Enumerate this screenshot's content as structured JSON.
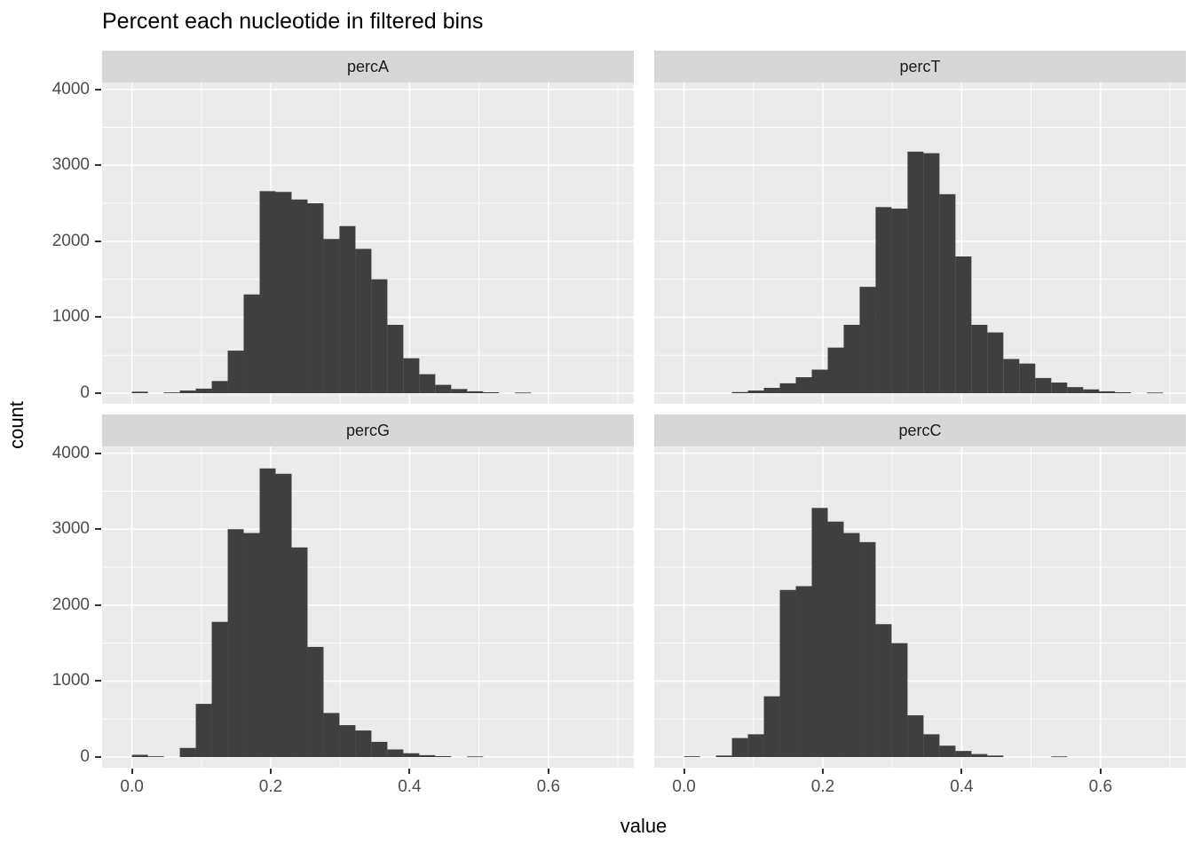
{
  "chart_data": {
    "type": "bar",
    "subtype": "faceted-histogram",
    "title": "Percent each nucleotide in filtered bins",
    "xlabel": "value",
    "ylabel": "count",
    "binwidth": 0.023,
    "x_range": [
      -0.043,
      0.723
    ],
    "y_range": [
      -140,
      4090
    ],
    "grid": "on",
    "legend": "none",
    "x_ticks": {
      "values": [
        0,
        0.2,
        0.4,
        0.6
      ],
      "labels": [
        "0.0",
        "0.2",
        "0.4",
        "0.6"
      ]
    },
    "y_ticks": {
      "values": [
        0,
        1000,
        2000,
        3000,
        4000
      ],
      "labels": [
        "0",
        "1000",
        "2000",
        "3000",
        "4000"
      ]
    },
    "x_minor": [
      0.1,
      0.3,
      0.5,
      0.7
    ],
    "y_minor": [
      500,
      1500,
      2500,
      3500
    ],
    "colors": {
      "panel_bg": "#ebebeb",
      "strip_bg": "#d7d7d7",
      "strip_text": "#1a1a1a",
      "grid": "#ffffff",
      "bar": "#3f3f3f",
      "axis_text": "#4d4d4d",
      "tick": "#333333"
    },
    "facets": [
      {
        "label": "percA",
        "bins": [
          [
            0.0,
            20
          ],
          [
            0.046,
            10
          ],
          [
            0.069,
            35
          ],
          [
            0.092,
            60
          ],
          [
            0.115,
            160
          ],
          [
            0.138,
            560
          ],
          [
            0.161,
            1300
          ],
          [
            0.184,
            2660
          ],
          [
            0.207,
            2650
          ],
          [
            0.23,
            2550
          ],
          [
            0.253,
            2500
          ],
          [
            0.276,
            2030
          ],
          [
            0.299,
            2200
          ],
          [
            0.322,
            1900
          ],
          [
            0.345,
            1500
          ],
          [
            0.368,
            900
          ],
          [
            0.391,
            460
          ],
          [
            0.414,
            250
          ],
          [
            0.437,
            110
          ],
          [
            0.46,
            55
          ],
          [
            0.483,
            25
          ],
          [
            0.506,
            12
          ],
          [
            0.552,
            8
          ]
        ]
      },
      {
        "label": "percT",
        "bins": [
          [
            0.069,
            15
          ],
          [
            0.092,
            35
          ],
          [
            0.115,
            70
          ],
          [
            0.138,
            130
          ],
          [
            0.161,
            210
          ],
          [
            0.184,
            310
          ],
          [
            0.207,
            600
          ],
          [
            0.23,
            900
          ],
          [
            0.253,
            1400
          ],
          [
            0.276,
            2450
          ],
          [
            0.299,
            2430
          ],
          [
            0.322,
            3180
          ],
          [
            0.345,
            3160
          ],
          [
            0.368,
            2620
          ],
          [
            0.391,
            1800
          ],
          [
            0.414,
            900
          ],
          [
            0.437,
            800
          ],
          [
            0.46,
            450
          ],
          [
            0.483,
            390
          ],
          [
            0.506,
            200
          ],
          [
            0.529,
            140
          ],
          [
            0.552,
            80
          ],
          [
            0.575,
            50
          ],
          [
            0.598,
            25
          ],
          [
            0.621,
            12
          ],
          [
            0.667,
            8
          ]
        ]
      },
      {
        "label": "percG",
        "bins": [
          [
            0.0,
            30
          ],
          [
            0.023,
            10
          ],
          [
            0.069,
            120
          ],
          [
            0.092,
            700
          ],
          [
            0.115,
            1780
          ],
          [
            0.138,
            3000
          ],
          [
            0.161,
            2950
          ],
          [
            0.184,
            3800
          ],
          [
            0.207,
            3730
          ],
          [
            0.23,
            2760
          ],
          [
            0.253,
            1450
          ],
          [
            0.276,
            580
          ],
          [
            0.299,
            420
          ],
          [
            0.322,
            350
          ],
          [
            0.345,
            200
          ],
          [
            0.368,
            100
          ],
          [
            0.391,
            50
          ],
          [
            0.414,
            25
          ],
          [
            0.437,
            12
          ],
          [
            0.483,
            8
          ]
        ]
      },
      {
        "label": "percC",
        "bins": [
          [
            0.0,
            10
          ],
          [
            0.046,
            20
          ],
          [
            0.069,
            250
          ],
          [
            0.092,
            300
          ],
          [
            0.115,
            800
          ],
          [
            0.138,
            2200
          ],
          [
            0.161,
            2250
          ],
          [
            0.184,
            3280
          ],
          [
            0.207,
            3100
          ],
          [
            0.23,
            2950
          ],
          [
            0.253,
            2830
          ],
          [
            0.276,
            1750
          ],
          [
            0.299,
            1500
          ],
          [
            0.322,
            550
          ],
          [
            0.345,
            300
          ],
          [
            0.368,
            150
          ],
          [
            0.391,
            80
          ],
          [
            0.414,
            40
          ],
          [
            0.437,
            20
          ],
          [
            0.529,
            8
          ]
        ]
      }
    ]
  }
}
